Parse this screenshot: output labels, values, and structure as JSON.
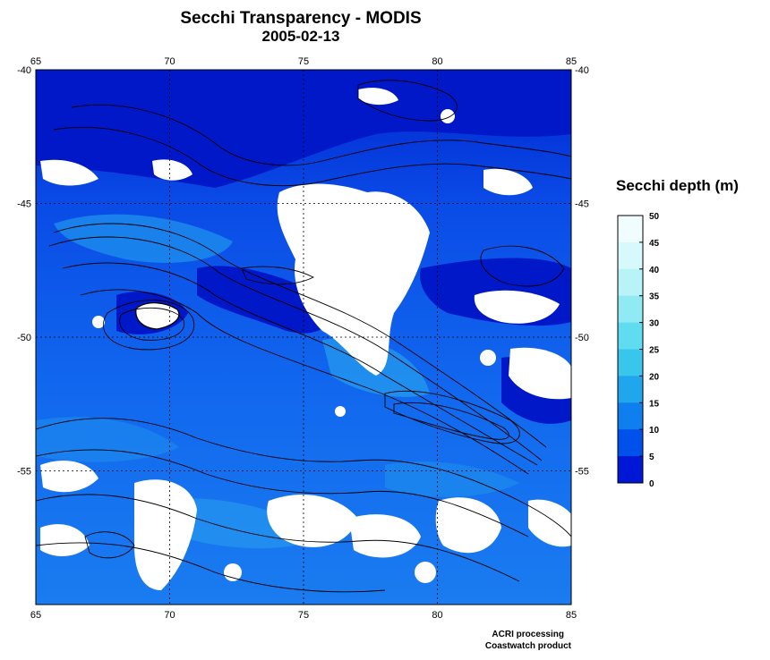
{
  "title": "Secchi Transparency - MODIS",
  "subtitle": "2005-02-13",
  "map": {
    "lon_range": [
      65,
      85
    ],
    "lat_range": [
      -60,
      -40
    ],
    "lon_ticks": [
      "65",
      "70",
      "75",
      "80",
      "85"
    ],
    "lat_ticks": [
      "-40",
      "-45",
      "-50",
      "-55"
    ],
    "cloud_color": "#ffffff",
    "contour_color": "#000000",
    "grid_style": "dotted"
  },
  "legend": {
    "title": "Secchi depth (m)",
    "ticks": [
      "50",
      "45",
      "40",
      "35",
      "30",
      "25",
      "20",
      "15",
      "10",
      "5",
      "0"
    ],
    "colors": [
      "#f0fdff",
      "#d6f9fb",
      "#b7f3f7",
      "#8feaf4",
      "#5fdcf0",
      "#38c6ec",
      "#1fa6ec",
      "#0f7eee",
      "#0050ec",
      "#0018d6",
      "#00008c"
    ]
  },
  "credits": {
    "line1": "ACRI processing",
    "line2": "Coastwatch product"
  }
}
